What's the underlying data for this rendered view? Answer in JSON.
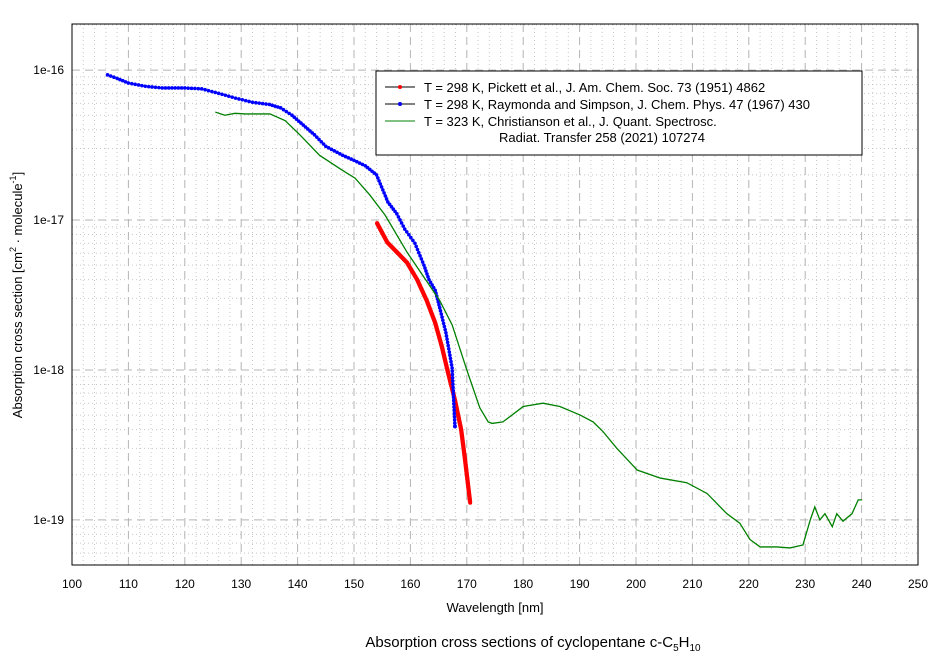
{
  "chart_data": {
    "type": "line",
    "title": {
      "parts": [
        "Absorption cross sections of cyclopentane c-C",
        "5",
        "H",
        "10"
      ]
    },
    "xlabel": "Wavelength [nm]",
    "ylabel": {
      "parts": [
        "Absorption cross section [cm",
        "2",
        " · molecule",
        "-1",
        "]"
      ]
    },
    "xlim": [
      100,
      250
    ],
    "ylim": [
      5e-20,
      2.03e-16
    ],
    "yscale": "log",
    "grid": true,
    "xticks": [
      100,
      110,
      120,
      130,
      140,
      150,
      160,
      170,
      180,
      190,
      200,
      210,
      220,
      230,
      240,
      250
    ],
    "yticks": [
      {
        "value": 1e-16,
        "label": "1e-16"
      },
      {
        "value": 1e-17,
        "label": "1e-17"
      },
      {
        "value": 1e-18,
        "label": "1e-18"
      },
      {
        "value": 1e-19,
        "label": "1e-19"
      }
    ],
    "legend": {
      "placement": "top-right",
      "entries": [
        {
          "label": "T = 298 K, Pickett et al., J. Am. Chem. Soc. 73 (1951) 4862"
        },
        {
          "label": "T = 298 K, Raymonda and Simpson, J. Chem. Phys. 47 (1967) 430"
        },
        {
          "label": "T = 323 K, Christianson et al., J. Quant. Spectrosc.",
          "label2": "Radiat. Transfer 258 (2021) 107274"
        }
      ]
    },
    "series": [
      {
        "name": "Pickett et al. 1951 (298 K)",
        "color": "#ff0000",
        "line_color": "#000000",
        "markers": true,
        "x": [
          154.1,
          155.9,
          157.8,
          159.4,
          161.2,
          162.9,
          164.4,
          165.6,
          166.7,
          167.9,
          169.0,
          169.7,
          170.6
        ],
        "y": [
          9.5e-18,
          7.1e-18,
          6e-18,
          5.2e-18,
          4e-18,
          2.9e-18,
          2.06e-18,
          1.42e-18,
          9.5e-19,
          6.3e-19,
          4e-19,
          2.5e-19,
          1.3e-19
        ]
      },
      {
        "name": "Raymonda and Simpson 1967 (298 K)",
        "color": "#0000ff",
        "line_color": "#000000",
        "markers": true,
        "x": [
          106.3,
          108,
          110,
          113,
          116,
          120,
          123,
          126,
          129,
          132,
          135,
          137,
          139,
          141,
          143,
          145,
          148,
          150,
          152,
          154,
          156.0,
          157.6,
          159.0,
          160.8,
          162.4,
          163.3,
          164.4,
          165.2,
          166.3,
          167.4,
          167.9
        ],
        "y": [
          9.3e-17,
          8.8e-17,
          8.2e-17,
          7.8e-17,
          7.6e-17,
          7.6e-17,
          7.5e-17,
          7e-17,
          6.5e-17,
          6.1e-17,
          5.9e-17,
          5.6e-17,
          5e-17,
          4.3e-17,
          3.7e-17,
          3.1e-17,
          2.7e-17,
          2.5e-17,
          2.3e-17,
          2e-17,
          1.32e-17,
          1.1e-17,
          8.7e-18,
          7e-18,
          5e-18,
          4e-18,
          3.4e-18,
          2.6e-18,
          1.77e-18,
          1.03e-18,
          4.2e-19
        ]
      },
      {
        "name": "Christianson et al. 2021 (323 K)",
        "color": "#008000",
        "markers": false,
        "x": [
          125.4,
          127.1,
          128.9,
          130.7,
          135.1,
          137.8,
          140.4,
          143.9,
          147.5,
          150.2,
          152.8,
          155.5,
          159.4,
          163.1,
          165.2,
          167.4,
          170.0,
          172.3,
          173.8,
          174.5,
          176.4,
          180.0,
          183.5,
          186.5,
          190.1,
          192.4,
          194.1,
          196.6,
          200.2,
          204.3,
          209.0,
          212.6,
          216.1,
          218.4,
          220.2,
          222.0,
          225.0,
          227.3,
          229.6,
          230.9,
          231.7,
          232.6,
          233.5,
          234.8,
          235.6,
          236.7,
          238.3,
          239.4,
          240.1
        ],
        "y": [
          5.25e-17,
          5e-17,
          5.15e-17,
          5.1e-17,
          5.1e-17,
          4.6e-17,
          3.7e-17,
          2.7e-17,
          2.2e-17,
          1.9e-17,
          1.47e-17,
          1.08e-17,
          6.1e-18,
          3.8e-18,
          2.9e-18,
          2e-18,
          1e-18,
          5.6e-19,
          4.5e-19,
          4.4e-19,
          4.5e-19,
          5.7e-19,
          6e-19,
          5.7e-19,
          5e-19,
          4.5e-19,
          3.9e-19,
          3e-19,
          2.15e-19,
          1.9e-19,
          1.77e-19,
          1.5e-19,
          1.1e-19,
          9.5e-20,
          7.4e-20,
          6.6e-20,
          6.6e-20,
          6.5e-20,
          6.8e-20,
          1e-19,
          1.22e-19,
          1e-19,
          1.1e-19,
          9e-20,
          1.1e-19,
          9.8e-20,
          1.1e-19,
          1.36e-19,
          1.36e-19
        ]
      }
    ]
  }
}
